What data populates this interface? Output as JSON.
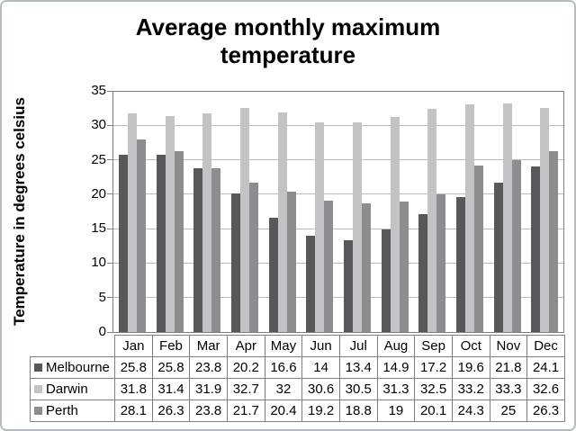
{
  "title_lines": [
    "Average monthly maximum",
    "temperature"
  ],
  "colors": {
    "melbourne": "#58585a",
    "darwin": "#c3c3c5",
    "perth": "#8d8d8f",
    "gridline": "#b9b9b9",
    "plot_border": "#7f7f7f",
    "table_border": "#7f7f7f",
    "outer_border": "#b6bcc4"
  },
  "chart_data": {
    "type": "bar",
    "title": "Average monthly maximum temperature",
    "xlabel": "",
    "ylabel": "Temperature in degrees celsius",
    "ylim": [
      0,
      35
    ],
    "yticks": [
      0,
      5,
      10,
      15,
      20,
      25,
      30,
      35
    ],
    "grid": true,
    "legend_position": "table-left",
    "categories": [
      "Jan",
      "Feb",
      "Mar",
      "Apr",
      "May",
      "Jun",
      "Jul",
      "Aug",
      "Sep",
      "Oct",
      "Nov",
      "Dec"
    ],
    "series": [
      {
        "name": "Melbourne",
        "color": "#58585a",
        "values": [
          25.8,
          25.8,
          23.8,
          20.2,
          16.6,
          14,
          13.4,
          14.9,
          17.2,
          19.6,
          21.8,
          24.1
        ]
      },
      {
        "name": "Darwin",
        "color": "#c3c3c5",
        "values": [
          31.8,
          31.4,
          31.9,
          32.7,
          32,
          30.6,
          30.5,
          31.3,
          32.5,
          33.2,
          33.3,
          32.6
        ]
      },
      {
        "name": "Perth",
        "color": "#8d8d8f",
        "values": [
          28.1,
          26.3,
          23.8,
          21.7,
          20.4,
          19.2,
          18.8,
          19,
          20.1,
          24.3,
          25,
          26.3
        ]
      }
    ]
  }
}
